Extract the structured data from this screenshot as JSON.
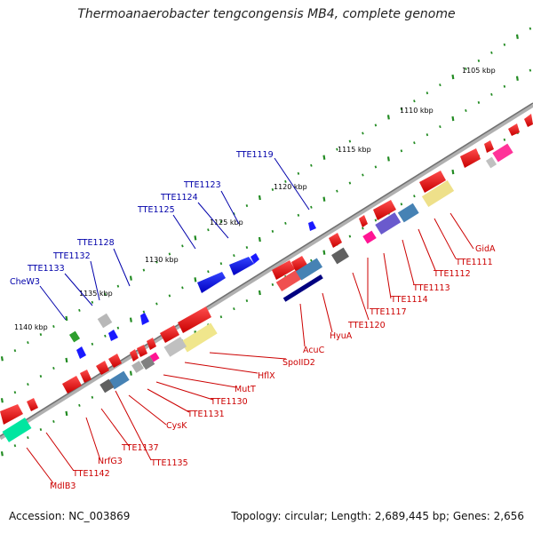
{
  "title": "Thermoanaerobacter tengcongensis MB4, complete genome",
  "footer": {
    "accession": "Accession: NC_003869",
    "stats": "Topology: circular; Length: 2,689,445 bp; Genes: 2,656"
  },
  "colors": {
    "forward_label": "#0000aa",
    "reverse_label": "#cc0000",
    "backbone": "#808080",
    "tick": "#228b22"
  },
  "kbp_marks": [
    "1105 kbp",
    "1110 kbp",
    "1115 kbp",
    "1120 kbp",
    "1125 kbp",
    "1130 kbp",
    "1135 kbp",
    "1140 kbp"
  ],
  "forward_labels": [
    "TTE1119",
    "TTE1123",
    "TTE1124",
    "TTE1125",
    "TTE1128",
    "TTE1132",
    "TTE1133",
    "CheW3"
  ],
  "reverse_labels": [
    "GidA",
    "TTE1111",
    "TTE1112",
    "TTE1113",
    "TTE1114",
    "TTE1117",
    "TTE1120",
    "HyuA",
    "AcuC",
    "SpoIID2",
    "HflX",
    "MutT",
    "TTE1130",
    "TTE1131",
    "CysK",
    "TTE1135",
    "TTE1137",
    "NrfG3",
    "TTE1142",
    "MdlB3"
  ]
}
